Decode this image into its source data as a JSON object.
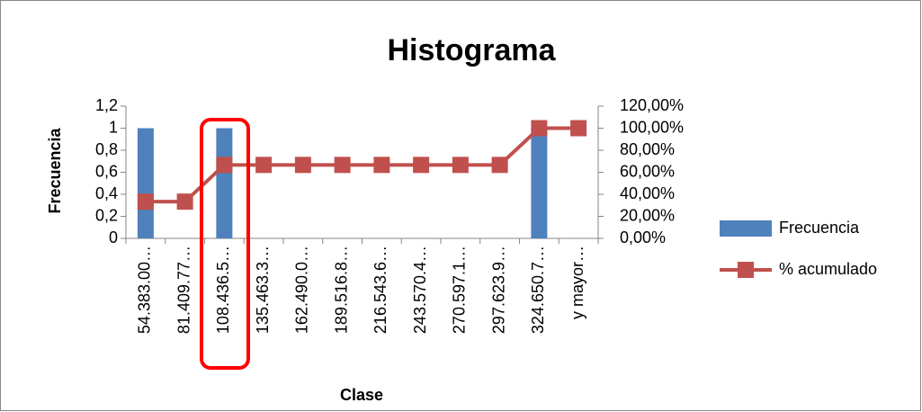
{
  "chart_data": {
    "type": "bar",
    "title": "Histograma",
    "x_label": "Clase",
    "y_label": "Frecuencia",
    "categories": [
      "54.383.00…",
      "81.409.77…",
      "108.436.5…",
      "135.463.3…",
      "162.490.0…",
      "189.516.8…",
      "216.543.6…",
      "243.570.4…",
      "270.597.1…",
      "297.623.9…",
      "324.650.7…",
      "y mayor…"
    ],
    "series": [
      {
        "name": "Frecuencia",
        "type": "bar",
        "color": "#4f81bd",
        "values": [
          1,
          0,
          1,
          0,
          0,
          0,
          0,
          0,
          0,
          0,
          1,
          0
        ]
      },
      {
        "name": "% acumulado",
        "type": "line",
        "axis": "y2",
        "color": "#c0504d",
        "values": [
          33.33,
          33.33,
          66.67,
          66.67,
          66.67,
          66.67,
          66.67,
          66.67,
          66.67,
          66.67,
          100,
          100
        ]
      }
    ],
    "ylim": [
      0,
      1.2
    ],
    "yticks": [
      0,
      {
        "value": 0.2,
        "label": "0,2"
      },
      {
        "value": 0.4,
        "label": "0,4"
      },
      {
        "value": 0.6,
        "label": "0,6"
      },
      {
        "value": 0.8,
        "label": "0,8"
      },
      1,
      {
        "value": 1.2,
        "label": "1,2"
      }
    ],
    "y2lim": [
      0,
      120
    ],
    "y2ticks": [
      {
        "value": 0,
        "label": "0,00%"
      },
      {
        "value": 20,
        "label": "20,00%"
      },
      {
        "value": 40,
        "label": "40,00%"
      },
      {
        "value": 60,
        "label": "60,00%"
      },
      {
        "value": 80,
        "label": "80,00%"
      },
      {
        "value": 100,
        "label": "100,00%"
      },
      {
        "value": 120,
        "label": "120,00%"
      }
    ],
    "grid": false,
    "legend": "right"
  }
}
